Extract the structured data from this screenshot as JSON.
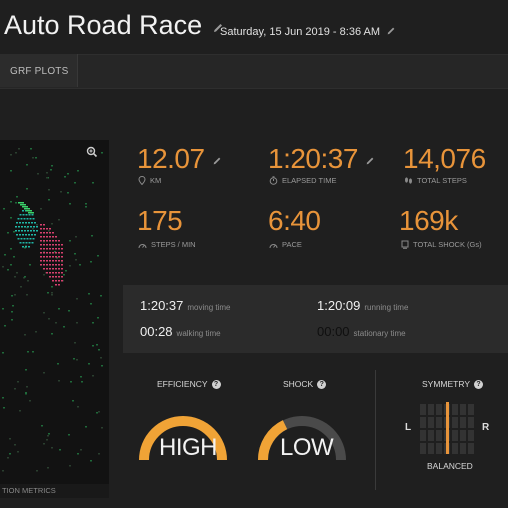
{
  "header": {
    "title": "Auto Road Race",
    "date": "Saturday, 15 Jun 2019 - 8:36 AM"
  },
  "tabs": [
    {
      "label": "GRF PLOTS",
      "active": true
    }
  ],
  "left_panel": {
    "footer_label": "TION METRICS",
    "icon": "zoom-in-icon"
  },
  "metrics": [
    {
      "value": "12.07",
      "label": "KM",
      "icon": "map-pin-icon",
      "editable": true
    },
    {
      "value": "1:20:37",
      "label": "ELAPSED TIME",
      "icon": "stopwatch-icon",
      "editable": true
    },
    {
      "value": "14,076",
      "label": "TOTAL STEPS",
      "icon": "footsteps-icon",
      "editable": false
    },
    {
      "value": "175",
      "label": "STEPS / MIN",
      "icon": "gauge-icon",
      "editable": false
    },
    {
      "value": "6:40",
      "label": "PACE",
      "icon": "gauge-icon",
      "editable": false
    },
    {
      "value": "169k",
      "label": "TOTAL SHOCK (Gs)",
      "icon": "shock-icon",
      "editable": false
    }
  ],
  "times": {
    "moving": {
      "value": "1:20:37",
      "label": "moving time"
    },
    "running": {
      "value": "1:20:09",
      "label": "running time"
    },
    "walking": {
      "value": "00:28",
      "label": "walking time"
    },
    "stationary": {
      "value": "00:00",
      "label": "stationary time"
    }
  },
  "gauges": {
    "efficiency": {
      "label": "EFFICIENCY",
      "value": "HIGH"
    },
    "shock": {
      "label": "SHOCK",
      "value": "LOW"
    },
    "symmetry": {
      "label": "SYMMETRY",
      "value": "BALANCED",
      "left": "L",
      "right": "R"
    }
  },
  "colors": {
    "accent": "#e8943a",
    "gauge_track": "#4a4a4a",
    "background": "#1f1f1f"
  }
}
